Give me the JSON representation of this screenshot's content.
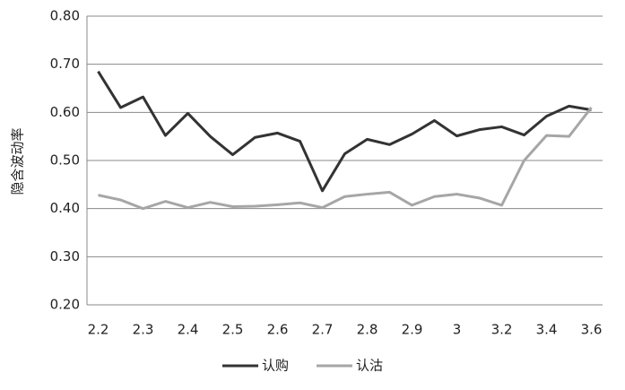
{
  "chart_data": {
    "type": "line",
    "y_label": "隐含波动率",
    "categories": [
      "2.2",
      null,
      "2.3",
      null,
      "2.4",
      null,
      "2.5",
      null,
      "2.6",
      null,
      "2.7",
      null,
      "2.8",
      null,
      "2.9",
      null,
      "3",
      null,
      "3.2",
      null,
      "3.4",
      null,
      "3.6"
    ],
    "series": [
      {
        "name": "认购",
        "color": "#333333",
        "values": [
          0.685,
          0.61,
          0.632,
          0.552,
          0.598,
          0.55,
          0.512,
          0.548,
          0.557,
          0.54,
          0.437,
          0.514,
          0.544,
          0.533,
          0.555,
          0.583,
          0.551,
          0.564,
          0.57,
          0.553,
          0.592,
          0.613,
          0.605
        ]
      },
      {
        "name": "认沽",
        "color": "#a6a6a6",
        "values": [
          0.428,
          0.418,
          0.4,
          0.415,
          0.402,
          0.413,
          0.404,
          0.405,
          0.408,
          0.412,
          0.402,
          0.425,
          0.43,
          0.434,
          0.407,
          0.425,
          0.43,
          0.422,
          0.407,
          0.5,
          0.552,
          0.55,
          0.61
        ]
      }
    ],
    "ylim": [
      0.2,
      0.8
    ],
    "yticks": [
      {
        "value": 0.2,
        "label": "0.20"
      },
      {
        "value": 0.3,
        "label": "0.30"
      },
      {
        "value": 0.4,
        "label": "0.40"
      },
      {
        "value": 0.5,
        "label": "0.50"
      },
      {
        "value": 0.6,
        "label": "0.60"
      },
      {
        "value": 0.7,
        "label": "0.70"
      },
      {
        "value": 0.8,
        "label": "0.80"
      }
    ],
    "grid": true,
    "legend": "bottom"
  }
}
